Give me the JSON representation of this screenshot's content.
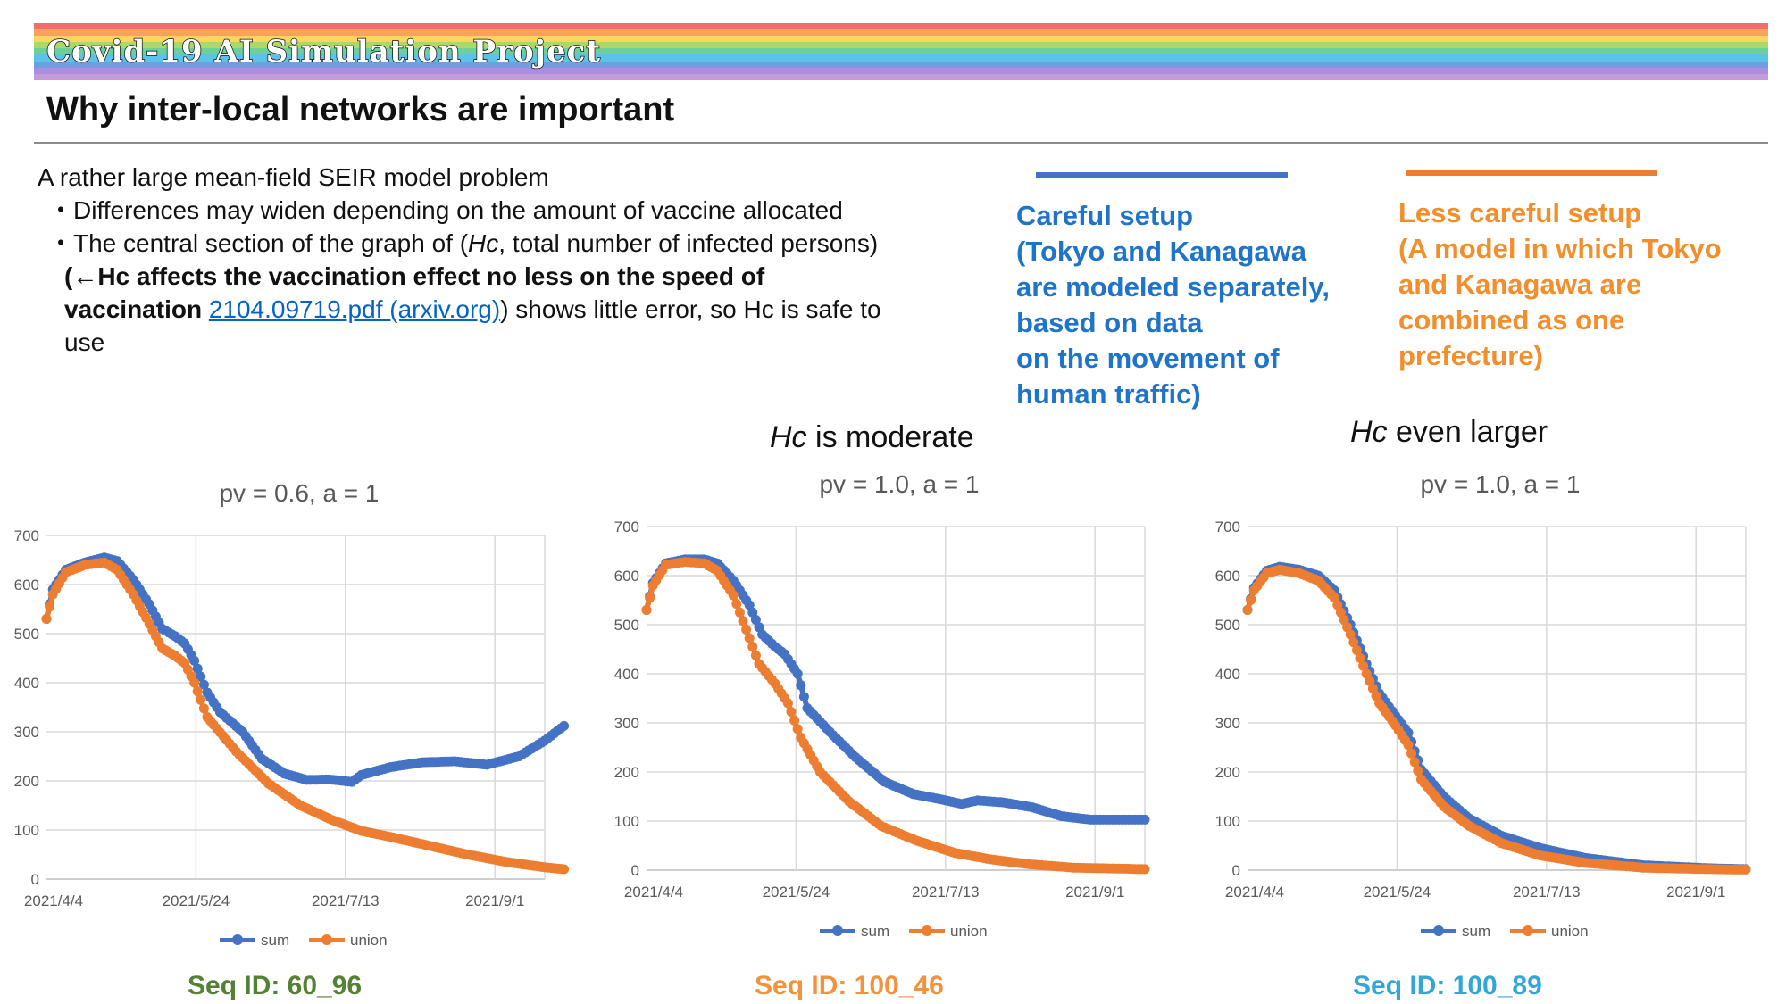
{
  "header": {
    "brand": "Covid-19 AI Simulation Project",
    "title": "Why inter-local networks are important",
    "rainbow": [
      "#f26d6d",
      "#f7a35c",
      "#fcd462",
      "#a8d96b",
      "#6ccf9c",
      "#5cc3e8",
      "#6f9fe0",
      "#a98fde",
      "#c59ad9"
    ]
  },
  "bullets": {
    "intro": "A rather large mean-field SEIR model problem",
    "b1": "・Differences may widen depending on the amount of vaccine allocated",
    "b2_pre": "・The central section of the graph of (",
    "b2_italic": "Hc",
    "b2_post": ", total number of infected persons)",
    "b3_bold1": "(←Hc affects the vaccination effect no less on the speed of",
    "b3_bold2": "vaccination ",
    "b3_link": "2104.09719.pdf (arxiv.org)",
    "b3_rest": ") shows little error, so Hc is safe to",
    "b3_end": "use"
  },
  "legend_notes": {
    "blue": [
      "Careful setup",
      "(Tokyo and Kanagawa",
      "are modeled separately,",
      "based on data",
      "on the movement of",
      "human traffic)"
    ],
    "orange": [
      "Less careful setup",
      "(A model in which Tokyo",
      "and Kanagawa are",
      "combined as one",
      "prefecture)"
    ],
    "blue_color": "#1e74c8",
    "orange_color": "#f28e2b"
  },
  "hc_labels": {
    "moderate": {
      "italic": "Hc",
      "text": " is moderate"
    },
    "larger": {
      "italic": "Hc",
      "text": " even larger"
    }
  },
  "seq_ids": [
    {
      "text": "Seq ID: 60_96",
      "color": "#548235"
    },
    {
      "text": "Seq ID: 100_46",
      "color": "#f4913b"
    },
    {
      "text": "Seq ID: 100_89",
      "color": "#33a6d8"
    }
  ],
  "chart_data": [
    {
      "type": "line",
      "title": "pv = 0.6, a = 1",
      "x_ticks": [
        "2021/4/4",
        "2021/5/24",
        "2021/7/13",
        "2021/9/1"
      ],
      "x_range": [
        "2021-04-04",
        "2021-09-06"
      ],
      "ylim": [
        0,
        700
      ],
      "yticks": [
        0,
        100,
        200,
        300,
        400,
        500,
        600,
        700
      ],
      "grid": true,
      "legend": "bottom",
      "series": [
        {
          "name": "sum",
          "color": "#4472c4",
          "points": [
            [
              "2021-04-04",
              530
            ],
            [
              "2021-04-06",
              590
            ],
            [
              "2021-04-10",
              630
            ],
            [
              "2021-04-16",
              645
            ],
            [
              "2021-04-22",
              655
            ],
            [
              "2021-04-26",
              648
            ],
            [
              "2021-05-01",
              610
            ],
            [
              "2021-05-06",
              560
            ],
            [
              "2021-05-10",
              510
            ],
            [
              "2021-05-14",
              495
            ],
            [
              "2021-05-17",
              480
            ],
            [
              "2021-05-20",
              445
            ],
            [
              "2021-05-24",
              380
            ],
            [
              "2021-05-28",
              340
            ],
            [
              "2021-06-04",
              300
            ],
            [
              "2021-06-10",
              245
            ],
            [
              "2021-06-17",
              215
            ],
            [
              "2021-06-24",
              202
            ],
            [
              "2021-07-01",
              203
            ],
            [
              "2021-07-08",
              198
            ],
            [
              "2021-07-11",
              212
            ],
            [
              "2021-07-20",
              228
            ],
            [
              "2021-07-30",
              238
            ],
            [
              "2021-08-09",
              240
            ],
            [
              "2021-08-19",
              233
            ],
            [
              "2021-08-29",
              250
            ],
            [
              "2021-09-06",
              282
            ],
            [
              "2021-09-12",
              312
            ]
          ]
        },
        {
          "name": "union",
          "color": "#ed7d31",
          "points": [
            [
              "2021-04-04",
              530
            ],
            [
              "2021-04-06",
              580
            ],
            [
              "2021-04-10",
              625
            ],
            [
              "2021-04-16",
              640
            ],
            [
              "2021-04-22",
              645
            ],
            [
              "2021-04-26",
              630
            ],
            [
              "2021-05-01",
              580
            ],
            [
              "2021-05-06",
              520
            ],
            [
              "2021-05-10",
              470
            ],
            [
              "2021-05-14",
              455
            ],
            [
              "2021-05-17",
              440
            ],
            [
              "2021-05-20",
              400
            ],
            [
              "2021-05-24",
              330
            ],
            [
              "2021-06-02",
              260
            ],
            [
              "2021-06-12",
              195
            ],
            [
              "2021-06-22",
              150
            ],
            [
              "2021-07-02",
              120
            ],
            [
              "2021-07-11",
              98
            ],
            [
              "2021-07-20",
              86
            ],
            [
              "2021-08-01",
              68
            ],
            [
              "2021-08-13",
              50
            ],
            [
              "2021-08-25",
              35
            ],
            [
              "2021-09-06",
              24
            ],
            [
              "2021-09-12",
              20
            ]
          ]
        }
      ]
    },
    {
      "type": "line",
      "title": "pv = 1.0, a = 1",
      "x_ticks": [
        "2021/4/4",
        "2021/5/24",
        "2021/7/13",
        "2021/9/1"
      ],
      "x_range": [
        "2021-04-04",
        "2021-09-06"
      ],
      "ylim": [
        0,
        700
      ],
      "yticks": [
        0,
        100,
        200,
        300,
        400,
        500,
        600,
        700
      ],
      "grid": true,
      "legend": "bottom",
      "series": [
        {
          "name": "sum",
          "color": "#4472c4",
          "points": [
            [
              "2021-04-04",
              530
            ],
            [
              "2021-04-06",
              585
            ],
            [
              "2021-04-10",
              625
            ],
            [
              "2021-04-16",
              633
            ],
            [
              "2021-04-22",
              633
            ],
            [
              "2021-04-26",
              625
            ],
            [
              "2021-05-01",
              590
            ],
            [
              "2021-05-06",
              540
            ],
            [
              "2021-05-10",
              480
            ],
            [
              "2021-05-14",
              455
            ],
            [
              "2021-05-17",
              440
            ],
            [
              "2021-05-21",
              400
            ],
            [
              "2021-05-24",
              330
            ],
            [
              "2021-06-01",
              275
            ],
            [
              "2021-06-08",
              230
            ],
            [
              "2021-06-17",
              180
            ],
            [
              "2021-06-26",
              155
            ],
            [
              "2021-07-04",
              145
            ],
            [
              "2021-07-11",
              135
            ],
            [
              "2021-07-16",
              142
            ],
            [
              "2021-07-24",
              138
            ],
            [
              "2021-08-02",
              128
            ],
            [
              "2021-08-11",
              110
            ],
            [
              "2021-08-20",
              103
            ],
            [
              "2021-09-06",
              103
            ]
          ]
        },
        {
          "name": "union",
          "color": "#ed7d31",
          "points": [
            [
              "2021-04-04",
              530
            ],
            [
              "2021-04-06",
              580
            ],
            [
              "2021-04-10",
              622
            ],
            [
              "2021-04-16",
              628
            ],
            [
              "2021-04-22",
              625
            ],
            [
              "2021-04-26",
              610
            ],
            [
              "2021-05-01",
              560
            ],
            [
              "2021-05-05",
              490
            ],
            [
              "2021-05-09",
              420
            ],
            [
              "2021-05-14",
              380
            ],
            [
              "2021-05-18",
              340
            ],
            [
              "2021-05-22",
              270
            ],
            [
              "2021-05-28",
              200
            ],
            [
              "2021-06-06",
              140
            ],
            [
              "2021-06-16",
              90
            ],
            [
              "2021-06-27",
              60
            ],
            [
              "2021-07-09",
              35
            ],
            [
              "2021-07-20",
              22
            ],
            [
              "2021-08-01",
              12
            ],
            [
              "2021-08-15",
              5
            ],
            [
              "2021-09-06",
              2
            ]
          ]
        }
      ]
    },
    {
      "type": "line",
      "title": "pv = 1.0, a = 1",
      "x_ticks": [
        "2021/4/4",
        "2021/5/24",
        "2021/7/13",
        "2021/9/1"
      ],
      "x_range": [
        "2021-04-04",
        "2021-09-06"
      ],
      "ylim": [
        0,
        700
      ],
      "yticks": [
        0,
        100,
        200,
        300,
        400,
        500,
        600,
        700
      ],
      "grid": true,
      "legend": "bottom",
      "series": [
        {
          "name": "sum",
          "color": "#4472c4",
          "points": [
            [
              "2021-04-04",
              530
            ],
            [
              "2021-04-06",
              575
            ],
            [
              "2021-04-10",
              610
            ],
            [
              "2021-04-14",
              618
            ],
            [
              "2021-04-20",
              612
            ],
            [
              "2021-04-26",
              600
            ],
            [
              "2021-05-01",
              570
            ],
            [
              "2021-05-06",
              500
            ],
            [
              "2021-05-11",
              420
            ],
            [
              "2021-05-15",
              360
            ],
            [
              "2021-05-20",
              315
            ],
            [
              "2021-05-24",
              280
            ],
            [
              "2021-05-28",
              205
            ],
            [
              "2021-06-04",
              150
            ],
            [
              "2021-06-12",
              105
            ],
            [
              "2021-06-22",
              70
            ],
            [
              "2021-07-04",
              45
            ],
            [
              "2021-07-18",
              25
            ],
            [
              "2021-08-05",
              10
            ],
            [
              "2021-08-25",
              4
            ],
            [
              "2021-09-06",
              2
            ]
          ]
        },
        {
          "name": "union",
          "color": "#ed7d31",
          "points": [
            [
              "2021-04-04",
              530
            ],
            [
              "2021-04-06",
              570
            ],
            [
              "2021-04-10",
              605
            ],
            [
              "2021-04-14",
              612
            ],
            [
              "2021-04-20",
              605
            ],
            [
              "2021-04-26",
              590
            ],
            [
              "2021-05-01",
              555
            ],
            [
              "2021-05-06",
              480
            ],
            [
              "2021-05-11",
              400
            ],
            [
              "2021-05-15",
              340
            ],
            [
              "2021-05-20",
              295
            ],
            [
              "2021-05-24",
              255
            ],
            [
              "2021-05-28",
              185
            ],
            [
              "2021-06-04",
              130
            ],
            [
              "2021-06-12",
              90
            ],
            [
              "2021-06-22",
              55
            ],
            [
              "2021-07-04",
              30
            ],
            [
              "2021-07-18",
              15
            ],
            [
              "2021-08-05",
              5
            ],
            [
              "2021-08-25",
              2
            ],
            [
              "2021-09-06",
              1
            ]
          ]
        }
      ]
    }
  ]
}
